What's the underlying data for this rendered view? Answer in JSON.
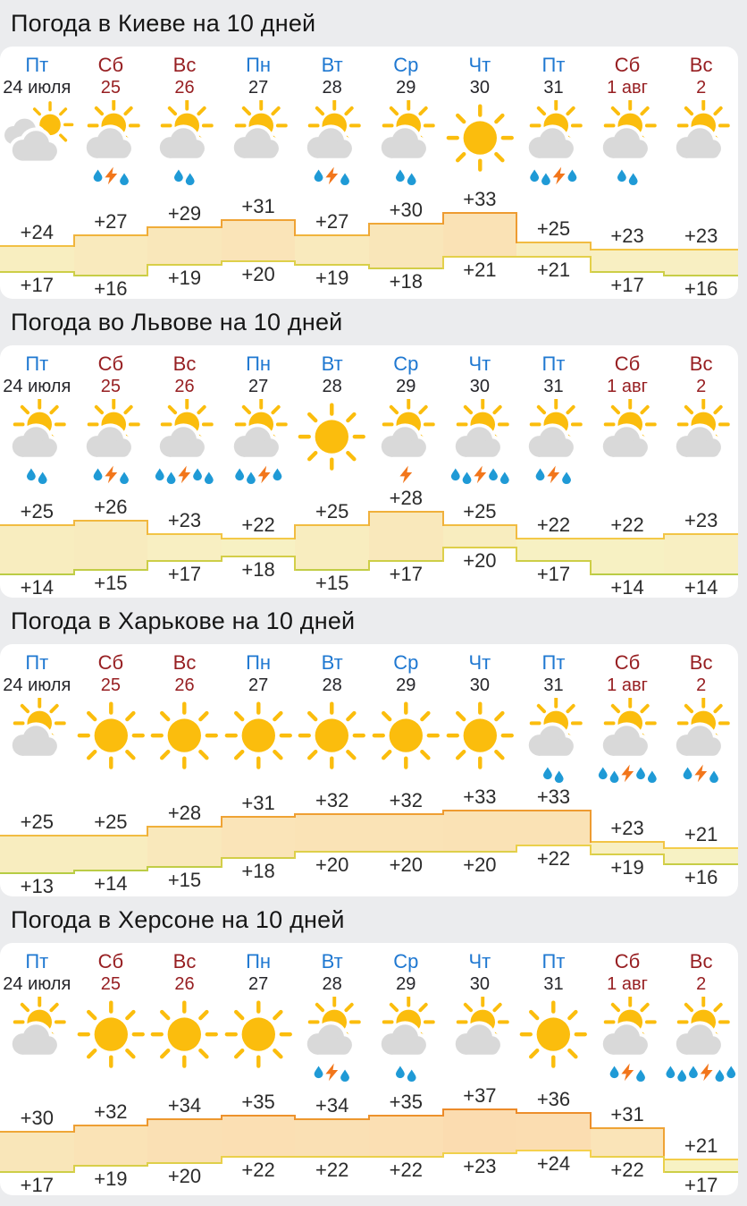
{
  "colors": {
    "weekday_link": "#1f78d1",
    "weekend_link": "#971f22",
    "plain_text": "#25252a",
    "sun": "#fbbd0d",
    "cloud": "#d9d9d9",
    "rain_drop": "#1f9ad6",
    "lightning_bolt": "#f2761b",
    "temp_max_line_cool": "#f3cd4a",
    "temp_max_line_hot": "#ec8a28",
    "temp_min_line_cool": "#b5cc44",
    "temp_min_line_warm": "#f6d14d",
    "band_fill_cool": "#f7f2c4",
    "band_fill_hot": "#fbdcb0",
    "card_bg": "#ffffff",
    "page_bg": "#ebecee"
  },
  "days": [
    {
      "dow": "Пт",
      "date": "24 июля",
      "dow_type": "weekday",
      "date_type": "plain"
    },
    {
      "dow": "Сб",
      "date": "25",
      "dow_type": "weekend",
      "date_type": "weekend"
    },
    {
      "dow": "Вс",
      "date": "26",
      "dow_type": "weekend",
      "date_type": "weekend"
    },
    {
      "dow": "Пн",
      "date": "27",
      "dow_type": "weekday",
      "date_type": "plain"
    },
    {
      "dow": "Вт",
      "date": "28",
      "dow_type": "weekday",
      "date_type": "plain"
    },
    {
      "dow": "Ср",
      "date": "29",
      "dow_type": "weekday",
      "date_type": "plain"
    },
    {
      "dow": "Чт",
      "date": "30",
      "dow_type": "weekday",
      "date_type": "plain"
    },
    {
      "dow": "Пт",
      "date": "31",
      "dow_type": "weekday",
      "date_type": "plain"
    },
    {
      "dow": "Сб",
      "date": "1 авг",
      "dow_type": "weekend",
      "date_type": "weekend"
    },
    {
      "dow": "Вс",
      "date": "2",
      "dow_type": "weekend",
      "date_type": "weekend"
    }
  ],
  "cities": [
    {
      "title": "Погода в Киеве на 10 дней",
      "icons": [
        "clouds-sun",
        "sun-cloud",
        "sun-cloud",
        "sun-cloud",
        "sun-cloud",
        "sun-cloud",
        "sun",
        "sun-cloud",
        "sun-cloud",
        "sun-cloud"
      ],
      "precip": [
        [],
        [
          "drop",
          "bolt",
          "drop"
        ],
        [
          "drop",
          "drop"
        ],
        [],
        [
          "drop",
          "bolt",
          "drop"
        ],
        [
          "drop",
          "drop"
        ],
        [],
        [
          "drop",
          "drop",
          "bolt",
          "drop"
        ],
        [
          "drop",
          "drop"
        ],
        []
      ],
      "highs": [
        24,
        27,
        29,
        31,
        27,
        30,
        33,
        25,
        23,
        23
      ],
      "lows": [
        17,
        16,
        19,
        20,
        19,
        18,
        21,
        21,
        17,
        16
      ]
    },
    {
      "title": "Погода во Львове на 10 дней",
      "icons": [
        "sun-cloud",
        "sun-cloud",
        "sun-cloud",
        "sun-cloud",
        "sun",
        "sun-cloud",
        "sun-cloud",
        "sun-cloud",
        "sun-cloud",
        "sun-cloud"
      ],
      "precip": [
        [
          "drop",
          "drop"
        ],
        [
          "drop",
          "bolt",
          "drop"
        ],
        [
          "drop",
          "drop",
          "bolt",
          "drop",
          "drop"
        ],
        [
          "drop",
          "drop",
          "bolt",
          "drop"
        ],
        [],
        [
          "bolt"
        ],
        [
          "drop",
          "drop",
          "bolt",
          "drop",
          "drop"
        ],
        [
          "drop",
          "bolt",
          "drop"
        ],
        [],
        []
      ],
      "highs": [
        25,
        26,
        23,
        22,
        25,
        28,
        25,
        22,
        22,
        23
      ],
      "lows": [
        14,
        15,
        17,
        18,
        15,
        17,
        20,
        17,
        14,
        14
      ]
    },
    {
      "title": "Погода в Харькове на 10 дней",
      "icons": [
        "sun-cloud",
        "sun",
        "sun",
        "sun",
        "sun",
        "sun",
        "sun",
        "sun-cloud",
        "sun-cloud",
        "sun-cloud"
      ],
      "precip": [
        [],
        [],
        [],
        [],
        [],
        [],
        [],
        [
          "drop",
          "drop"
        ],
        [
          "drop",
          "drop",
          "bolt",
          "drop",
          "drop"
        ],
        [
          "drop",
          "bolt",
          "drop"
        ]
      ],
      "highs": [
        25,
        25,
        28,
        31,
        32,
        32,
        33,
        33,
        23,
        21
      ],
      "lows": [
        13,
        14,
        15,
        18,
        20,
        20,
        20,
        22,
        19,
        16
      ]
    },
    {
      "title": "Погода в Херсоне на 10 дней",
      "icons": [
        "sun-cloud",
        "sun",
        "sun",
        "sun",
        "sun-cloud",
        "sun-cloud",
        "sun-cloud",
        "sun",
        "sun-cloud",
        "sun-cloud"
      ],
      "precip": [
        [],
        [],
        [],
        [],
        [
          "drop",
          "bolt",
          "drop"
        ],
        [
          "drop",
          "drop"
        ],
        [],
        [],
        [
          "drop",
          "bolt",
          "drop"
        ],
        [
          "drop",
          "drop",
          "drop",
          "bolt",
          "drop",
          "drop"
        ]
      ],
      "highs": [
        30,
        32,
        34,
        35,
        34,
        35,
        37,
        36,
        31,
        21
      ],
      "lows": [
        17,
        19,
        20,
        22,
        22,
        22,
        23,
        24,
        22,
        17
      ]
    }
  ]
}
